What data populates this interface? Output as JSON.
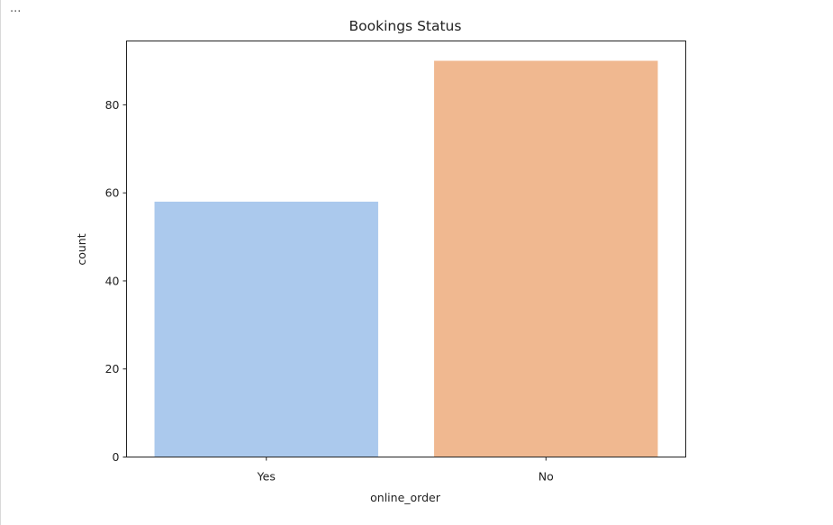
{
  "output_prompt": "...",
  "chart_data": {
    "type": "bar",
    "title": "Bookings Status",
    "xlabel": "online_order",
    "ylabel": "count",
    "categories": [
      "Yes",
      "No"
    ],
    "values": [
      58,
      90
    ],
    "colors": [
      "#abc9ed",
      "#f0b890"
    ],
    "ylim": [
      0,
      94.5
    ],
    "yticks": [
      0,
      20,
      40,
      60,
      80
    ],
    "grid": false,
    "legend": "none"
  }
}
